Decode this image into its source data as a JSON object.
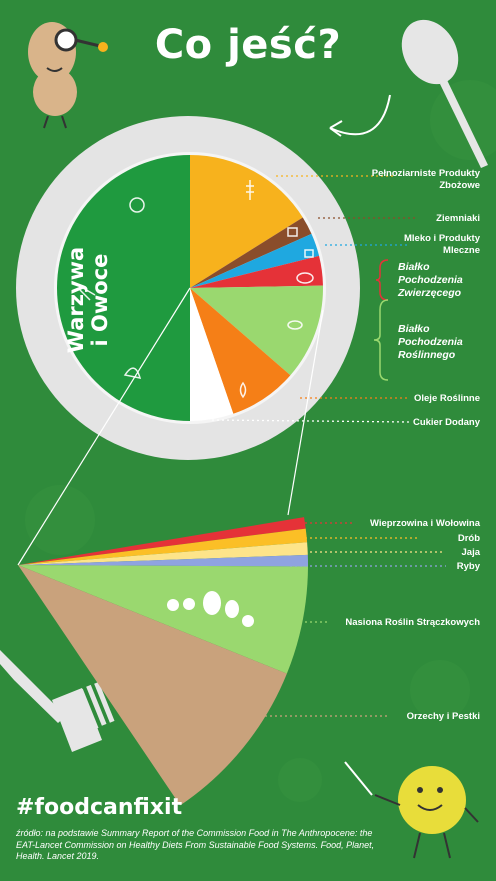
{
  "title": "Co jeść?",
  "plate": {
    "center_label_line1": "Warzywa",
    "center_label_line2": "i Owoce"
  },
  "plate_legend": [
    "Pełnoziarniste Produkty Zbożowe",
    "Ziemniaki",
    "Mleko i Produkty Mleczne",
    "Białko Pochodzenia Zwierzęcego",
    "Białko Pochodzenia Roślinnego",
    "Oleje Roślinne",
    "Cukier Dodany"
  ],
  "protein_legend": [
    "Wieprzowina i Wołowina",
    "Drób",
    "Jaja",
    "Ryby",
    "Nasiona Roślin Strączkowych",
    "Orzechy i Pestki"
  ],
  "hashtag": "#foodcanfixit",
  "source": "źródło: na podstawie Summary Report of the Commission Food in The Anthropocene: the EAT-Lancet Commission on Healthy Diets From Sustainable Food Systems. Food, Planet, Health. Lancet 2019.",
  "colors": {
    "background": "#2f8b3b",
    "vegetables_fruits": "#1f9a3f",
    "whole_grains": "#f7b21d",
    "potatoes": "#8a4d2b",
    "dairy": "#1fa8e0",
    "animal_protein": "#e53238",
    "plant_protein": "#9ad86f",
    "oils": "#f57f17",
    "sugar": "#ffffff",
    "beef_pork": "#e53238",
    "poultry": "#fbbf26",
    "eggs": "#fde48a",
    "fish": "#8fa3e0",
    "legumes": "#9ad86f",
    "nuts": "#c9a27c"
  }
}
